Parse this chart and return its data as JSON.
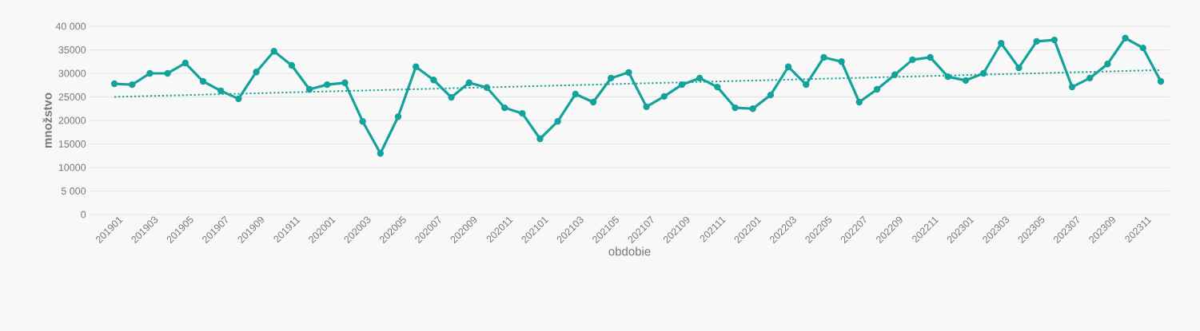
{
  "chart_data": {
    "type": "line",
    "xlabel": "obdobie",
    "ylabel": "množstvo",
    "categories": [
      "201901",
      null,
      "201903",
      null,
      "201905",
      null,
      "201907",
      null,
      "201909",
      null,
      "201911",
      null,
      "202001",
      null,
      "202003",
      null,
      "202005",
      null,
      "202007",
      null,
      "202009",
      null,
      "202011",
      null,
      "202101",
      null,
      "202103",
      null,
      "202105",
      null,
      "202107",
      null,
      "202109",
      null,
      "202111",
      null,
      "202201",
      null,
      "202203",
      null,
      "202205",
      null,
      "202207",
      null,
      "202209",
      null,
      "202211",
      null,
      "202301",
      null,
      "202303",
      null,
      "202305",
      null,
      "202307",
      null,
      "202309",
      null,
      "202311",
      null
    ],
    "series": [
      {
        "color": "#13a39a",
        "marker": "circle",
        "line_style": "solid",
        "values": [
          27800,
          27600,
          30000,
          30000,
          32200,
          28300,
          26300,
          24600,
          30300,
          34700,
          31700,
          26600,
          27600,
          28000,
          19800,
          13000,
          20800,
          31400,
          28600,
          24900,
          28000,
          27000,
          22700,
          21500,
          16100,
          19800,
          25600,
          23900,
          29000,
          30200,
          22900,
          25100,
          27600,
          29000,
          27100,
          22700,
          22500,
          25400,
          31400,
          27600,
          33400,
          32500,
          23900,
          26600,
          29700,
          32900,
          33400,
          29300,
          28500,
          30000,
          36400,
          31200,
          36800,
          37100,
          27100,
          29000,
          32000,
          37500,
          35400,
          28300
        ]
      },
      {
        "color": "#13a39a",
        "marker": "none",
        "line_style": "dotted",
        "values": [
          25000,
          null,
          null,
          null,
          null,
          null,
          null,
          null,
          null,
          null,
          null,
          null,
          null,
          null,
          null,
          null,
          null,
          null,
          null,
          null,
          null,
          null,
          null,
          null,
          null,
          null,
          null,
          null,
          null,
          null,
          null,
          null,
          null,
          null,
          null,
          null,
          null,
          null,
          null,
          null,
          null,
          null,
          null,
          null,
          null,
          null,
          null,
          null,
          null,
          null,
          null,
          null,
          null,
          null,
          null,
          null,
          null,
          null,
          null,
          30700
        ]
      }
    ],
    "ylim": [
      0,
      40000
    ],
    "yticks": [
      0,
      {
        "value": 5000,
        "label": "5 000"
      },
      10000,
      15000,
      20000,
      25000,
      30000,
      35000,
      {
        "value": 40000,
        "label": "40 000"
      }
    ],
    "grid": "y",
    "legend": false
  }
}
